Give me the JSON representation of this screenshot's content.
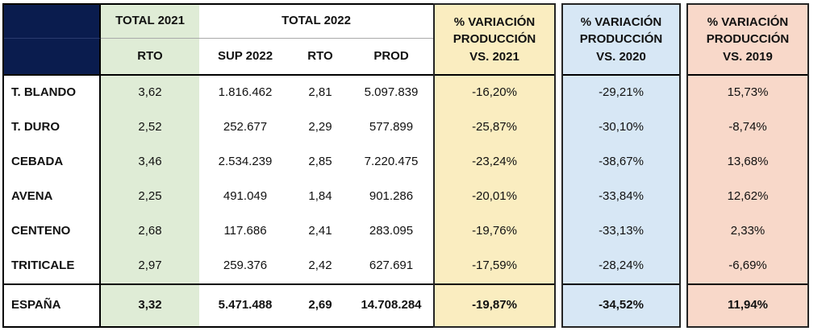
{
  "table": {
    "header": {
      "corner": "",
      "total_2021": "TOTAL 2021",
      "total_2022": "TOTAL 2022",
      "sub_rto_2021": "RTO",
      "sub_sup_2022": "SUP 2022",
      "sub_rto_2022": "RTO",
      "sub_prod_2022": "PROD",
      "var_vs_2021": "% VARIACIÓN\nPRODUCCIÓN\nVS. 2021",
      "var_vs_2020": "% VARIACIÓN\nPRODUCCIÓN\nVS. 2020",
      "var_vs_2019": "% VARIACIÓN\nPRODUCCIÓN\nVS. 2019"
    },
    "rows": [
      {
        "label": "T. BLANDO",
        "rto_2021": "3,62",
        "sup_2022": "1.816.462",
        "rto_2022": "2,81",
        "prod_2022": "5.097.839",
        "var_2021": "-16,20%",
        "var_2020": "-29,21%",
        "var_2019": "15,73%"
      },
      {
        "label": "T. DURO",
        "rto_2021": "2,52",
        "sup_2022": "252.677",
        "rto_2022": "2,29",
        "prod_2022": "577.899",
        "var_2021": "-25,87%",
        "var_2020": "-30,10%",
        "var_2019": "-8,74%"
      },
      {
        "label": "CEBADA",
        "rto_2021": "3,46",
        "sup_2022": "2.534.239",
        "rto_2022": "2,85",
        "prod_2022": "7.220.475",
        "var_2021": "-23,24%",
        "var_2020": "-38,67%",
        "var_2019": "13,68%"
      },
      {
        "label": "AVENA",
        "rto_2021": "2,25",
        "sup_2022": "491.049",
        "rto_2022": "1,84",
        "prod_2022": "901.286",
        "var_2021": "-20,01%",
        "var_2020": "-33,84%",
        "var_2019": "12,62%"
      },
      {
        "label": "CENTENO",
        "rto_2021": "2,68",
        "sup_2022": "117.686",
        "rto_2022": "2,41",
        "prod_2022": "283.095",
        "var_2021": "-19,76%",
        "var_2020": "-33,13%",
        "var_2019": "2,33%"
      },
      {
        "label": "TRITICALE",
        "rto_2021": "2,97",
        "sup_2022": "259.376",
        "rto_2022": "2,42",
        "prod_2022": "627.691",
        "var_2021": "-17,59%",
        "var_2020": "-28,24%",
        "var_2019": "-6,69%"
      }
    ],
    "total_row": {
      "label": "ESPAÑA",
      "rto_2021": "3,32",
      "sup_2022": "5.471.488",
      "rto_2022": "2,69",
      "prod_2022": "14.708.284",
      "var_2021": "-19,87%",
      "var_2020": "-34,52%",
      "var_2019": "11,94%"
    }
  },
  "colors": {
    "corner_navy": "#0A1C4E",
    "green_fill": "#DFECD6",
    "yellow_fill": "#FAEDC0",
    "blue_fill": "#D7E7F5",
    "salmon_fill": "#F8D8C9",
    "border_dark": "#000000",
    "border_thin_gray": "#A9A9A9"
  },
  "chart_data": {
    "type": "table",
    "columns": [
      "",
      "TOTAL 2021 · RTO",
      "TOTAL 2022 · SUP 2022",
      "TOTAL 2022 · RTO",
      "TOTAL 2022 · PROD",
      "% VARIACIÓN PRODUCCIÓN VS. 2021",
      "% VARIACIÓN PRODUCCIÓN VS. 2020",
      "% VARIACIÓN PRODUCCIÓN VS. 2019"
    ],
    "rows": [
      [
        "T. BLANDO",
        "3,62",
        "1.816.462",
        "2,81",
        "5.097.839",
        "-16,20%",
        "-29,21%",
        "15,73%"
      ],
      [
        "T. DURO",
        "2,52",
        "252.677",
        "2,29",
        "577.899",
        "-25,87%",
        "-30,10%",
        "-8,74%"
      ],
      [
        "CEBADA",
        "3,46",
        "2.534.239",
        "2,85",
        "7.220.475",
        "-23,24%",
        "-38,67%",
        "13,68%"
      ],
      [
        "AVENA",
        "2,25",
        "491.049",
        "1,84",
        "901.286",
        "-20,01%",
        "-33,84%",
        "12,62%"
      ],
      [
        "CENTENO",
        "2,68",
        "117.686",
        "2,41",
        "283.095",
        "-19,76%",
        "-33,13%",
        "2,33%"
      ],
      [
        "TRITICALE",
        "2,97",
        "259.376",
        "2,42",
        "627.691",
        "-17,59%",
        "-28,24%",
        "-6,69%"
      ],
      [
        "ESPAÑA",
        "3,32",
        "5.471.488",
        "2,69",
        "14.708.284",
        "-19,87%",
        "-34,52%",
        "11,94%"
      ]
    ]
  }
}
